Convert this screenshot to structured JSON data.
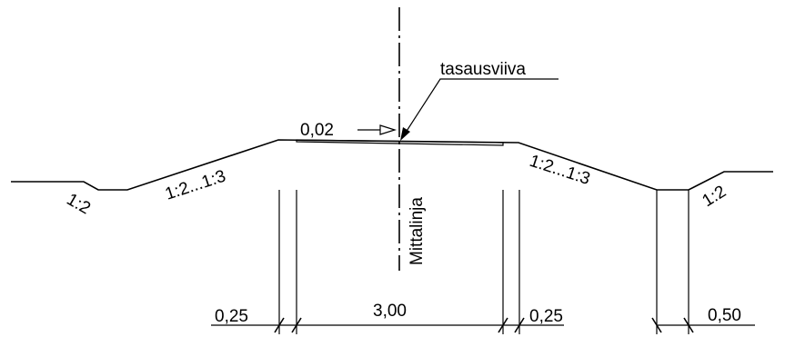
{
  "labels": {
    "leveling_line": "tasausviiva",
    "crossfall": "0,02",
    "measurement_line": "Mittalinja",
    "slope_left_outer": "1:2",
    "slope_left_inner": "1:2...1:3",
    "slope_right_inner": "1:2...1:3",
    "slope_right_outer": "1:2"
  },
  "dimensions": {
    "left_shoulder": "0,25",
    "carriageway": "3,00",
    "right_shoulder": "0,25",
    "ditch_bottom": "0,50"
  }
}
